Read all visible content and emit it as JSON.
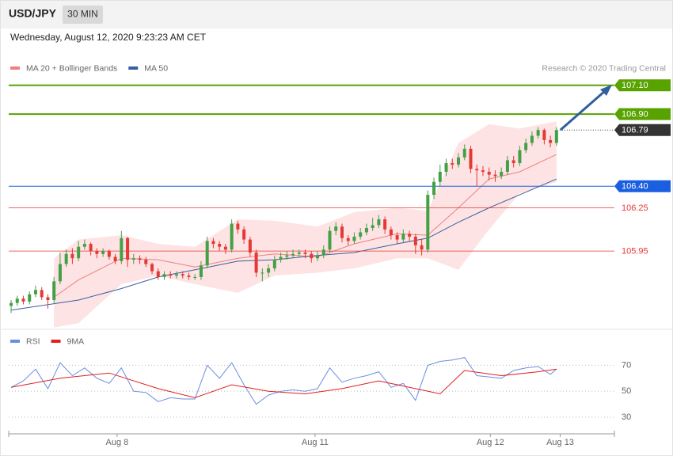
{
  "header": {
    "symbol": "USD/JPY",
    "timeframe": "30 MIN",
    "datetime": "Wednesday, August 12, 2020 9:23:23 AM CET"
  },
  "chart_data": [
    {
      "type": "candlestick",
      "credit": "Research © 2020 Trading Central",
      "up_color": "#43a047",
      "down_color": "#e53935",
      "xlim": [
        -0.39,
        98.45
      ],
      "ylim": [
        105.44,
        107.17
      ],
      "xticks": [
        {
          "value": 17.3,
          "label": "Aug 8"
        },
        {
          "value": 49.6,
          "label": "Aug 11"
        },
        {
          "value": 78.2,
          "label": "Aug 12"
        },
        {
          "value": 89.6,
          "label": "Aug 13"
        }
      ],
      "open": [
        105.57,
        105.59,
        105.62,
        105.6,
        105.65,
        105.68,
        105.63,
        105.61,
        105.74,
        105.86,
        105.93,
        105.9,
        105.98,
        106.0,
        105.95,
        105.93,
        105.95,
        105.91,
        105.88,
        106.04,
        105.89,
        105.9,
        105.89,
        105.86,
        105.81,
        105.77,
        105.79,
        105.78,
        105.79,
        105.78,
        105.77,
        105.77,
        105.85,
        106.02,
        106.0,
        105.98,
        105.96,
        106.14,
        106.1,
        106.03,
        105.94,
        105.8,
        105.8,
        105.83,
        105.89,
        105.91,
        105.92,
        105.93,
        105.94,
        105.93,
        105.9,
        105.92,
        105.96,
        106.09,
        106.12,
        106.04,
        106.02,
        106.05,
        106.08,
        106.11,
        106.13,
        106.17,
        106.1,
        106.06,
        106.03,
        106.07,
        106.05,
        105.99,
        105.96,
        106.34,
        106.43,
        106.5,
        106.56,
        106.55,
        106.6,
        106.66,
        106.52,
        106.51,
        106.5,
        106.48,
        106.47,
        106.5,
        106.58,
        106.56,
        106.65,
        106.7,
        106.75,
        106.79,
        106.72,
        106.7
      ],
      "high": [
        105.61,
        105.64,
        105.64,
        105.67,
        105.71,
        105.7,
        105.65,
        105.77,
        105.94,
        105.96,
        105.97,
        106.02,
        106.03,
        106.01,
        105.97,
        105.97,
        105.96,
        105.93,
        106.09,
        106.05,
        105.93,
        105.92,
        105.91,
        105.87,
        105.83,
        105.81,
        105.81,
        105.81,
        105.81,
        105.8,
        105.79,
        105.88,
        106.05,
        106.04,
        106.02,
        106.0,
        106.17,
        106.16,
        106.12,
        106.05,
        105.96,
        105.83,
        105.86,
        105.92,
        105.94,
        105.95,
        105.96,
        105.96,
        105.96,
        105.95,
        105.95,
        105.99,
        106.12,
        106.15,
        106.14,
        106.06,
        106.08,
        106.11,
        106.14,
        106.18,
        106.2,
        106.19,
        106.12,
        106.08,
        106.1,
        106.09,
        106.07,
        106.03,
        106.37,
        106.46,
        106.55,
        106.59,
        106.59,
        106.63,
        106.69,
        106.68,
        106.55,
        106.54,
        106.53,
        106.51,
        106.53,
        106.61,
        106.61,
        106.68,
        106.73,
        106.78,
        106.81,
        106.8,
        106.75,
        106.81
      ],
      "low": [
        105.52,
        105.57,
        105.58,
        105.58,
        105.63,
        105.61,
        105.55,
        105.59,
        105.72,
        105.84,
        105.86,
        105.88,
        105.96,
        105.92,
        105.9,
        105.91,
        105.89,
        105.86,
        105.86,
        105.84,
        105.86,
        105.86,
        105.84,
        105.79,
        105.75,
        105.75,
        105.76,
        105.76,
        105.76,
        105.75,
        105.75,
        105.75,
        105.83,
        105.97,
        105.95,
        105.93,
        105.94,
        106.07,
        106.0,
        105.91,
        105.77,
        105.74,
        105.77,
        105.81,
        105.87,
        105.89,
        105.9,
        105.91,
        105.9,
        105.87,
        105.88,
        105.9,
        105.94,
        106.06,
        106.01,
        105.99,
        106.0,
        106.03,
        106.06,
        106.09,
        106.11,
        106.07,
        106.03,
        106.0,
        106.01,
        106.02,
        105.93,
        105.92,
        105.94,
        106.31,
        106.4,
        106.47,
        106.52,
        106.53,
        106.58,
        106.49,
        106.4,
        106.47,
        106.44,
        106.43,
        106.45,
        106.48,
        106.53,
        106.54,
        106.63,
        106.68,
        106.73,
        106.69,
        106.67,
        106.68
      ],
      "close": [
        105.59,
        105.62,
        105.6,
        105.65,
        105.68,
        105.63,
        105.61,
        105.74,
        105.86,
        105.93,
        105.9,
        105.98,
        106.0,
        105.95,
        105.93,
        105.95,
        105.91,
        105.88,
        106.04,
        105.89,
        105.9,
        105.89,
        105.86,
        105.81,
        105.77,
        105.79,
        105.78,
        105.79,
        105.78,
        105.77,
        105.77,
        105.85,
        106.02,
        106.0,
        105.98,
        105.96,
        106.14,
        106.1,
        106.03,
        105.94,
        105.8,
        105.8,
        105.83,
        105.89,
        105.91,
        105.92,
        105.93,
        105.94,
        105.93,
        105.9,
        105.92,
        105.96,
        106.09,
        106.12,
        106.04,
        106.02,
        106.05,
        106.08,
        106.11,
        106.13,
        106.17,
        106.1,
        106.06,
        106.03,
        106.07,
        106.05,
        105.99,
        105.96,
        106.34,
        106.43,
        106.5,
        106.56,
        106.55,
        106.6,
        106.66,
        106.52,
        106.51,
        106.5,
        106.48,
        106.47,
        106.5,
        106.58,
        106.56,
        106.65,
        106.7,
        106.75,
        106.79,
        106.72,
        106.7,
        106.79
      ],
      "series": [
        {
          "name": "MA 20 + Bollinger Bands",
          "color": "#f08080",
          "band_color": "#fde3e3",
          "x": [
            7,
            11,
            18,
            24,
            30,
            37,
            43,
            50,
            56,
            63,
            68,
            73,
            78,
            83,
            89
          ],
          "values": [
            105.63,
            105.75,
            105.9,
            105.89,
            105.84,
            105.9,
            105.93,
            105.91,
            106.0,
            106.07,
            106.06,
            106.25,
            106.45,
            106.5,
            106.62
          ],
          "upper": [
            105.9,
            106.03,
            106.06,
            106.0,
            105.98,
            106.17,
            106.16,
            106.12,
            106.22,
            106.25,
            106.23,
            106.7,
            106.83,
            106.8,
            106.85
          ],
          "lower": [
            105.42,
            105.45,
            105.72,
            105.78,
            105.72,
            105.66,
            105.78,
            105.8,
            105.83,
            105.9,
            105.9,
            105.82,
            106.1,
            106.35,
            106.43
          ]
        },
        {
          "name": "MA 50",
          "color": "#3a5fa0",
          "x": [
            0,
            11,
            18,
            24,
            30,
            37,
            43,
            50,
            56,
            63,
            68,
            73,
            78,
            83,
            89
          ],
          "values": [
            105.54,
            105.61,
            105.69,
            105.77,
            105.82,
            105.88,
            105.89,
            105.92,
            105.94,
            106.0,
            106.04,
            106.15,
            106.25,
            106.34,
            106.45
          ]
        }
      ],
      "levels": [
        {
          "value": 107.1,
          "label": "107.10",
          "color": "#58a300",
          "line": "solid",
          "tag": true
        },
        {
          "value": 106.9,
          "label": "106.90",
          "color": "#58a300",
          "line": "solid",
          "tag": true
        },
        {
          "value": 106.79,
          "label": "106.79",
          "color": "#333333",
          "line": "dotted",
          "tag": true
        },
        {
          "value": 106.4,
          "label": "106.40",
          "color": "#1a5fe0",
          "line": "solid",
          "tag": true
        },
        {
          "value": 106.25,
          "label": "106.25",
          "color": "#e53935",
          "line": "solid",
          "tag": false
        },
        {
          "value": 105.95,
          "label": "105.95",
          "color": "#e53935",
          "line": "solid",
          "tag": false
        }
      ]
    },
    {
      "type": "line",
      "xlim": [
        -0.39,
        98.45
      ],
      "ylim": [
        19,
        80
      ],
      "yticks": [
        70,
        50,
        30
      ],
      "grid": true,
      "series": [
        {
          "name": "RSI",
          "color": "#6a8ee0",
          "x": [
            0,
            2,
            4,
            6,
            8,
            10,
            12,
            14,
            16,
            18,
            20,
            22,
            24,
            26,
            28,
            30,
            32,
            34,
            36,
            38,
            40,
            42,
            44,
            46,
            48,
            50,
            52,
            54,
            56,
            58,
            60,
            62,
            64,
            66,
            68,
            70,
            72,
            74,
            76,
            78,
            80,
            82,
            84,
            86,
            88,
            89
          ],
          "values": [
            53,
            58,
            67,
            52,
            72,
            62,
            68,
            60,
            56,
            68,
            50,
            49,
            42,
            45,
            44,
            44,
            70,
            60,
            72,
            55,
            40,
            47,
            50,
            51,
            50,
            52,
            68,
            57,
            60,
            62,
            65,
            53,
            56,
            43,
            70,
            73,
            74,
            76,
            62,
            61,
            60,
            66,
            68,
            69,
            63,
            67
          ]
        },
        {
          "name": "9MA",
          "color": "#e02020",
          "x": [
            0,
            8,
            16,
            24,
            30,
            36,
            42,
            48,
            54,
            60,
            66,
            70,
            74,
            80,
            86,
            89
          ],
          "values": [
            53,
            60,
            64,
            52,
            45,
            55,
            50,
            48,
            52,
            58,
            52,
            48,
            66,
            62,
            65,
            67
          ]
        }
      ]
    }
  ]
}
